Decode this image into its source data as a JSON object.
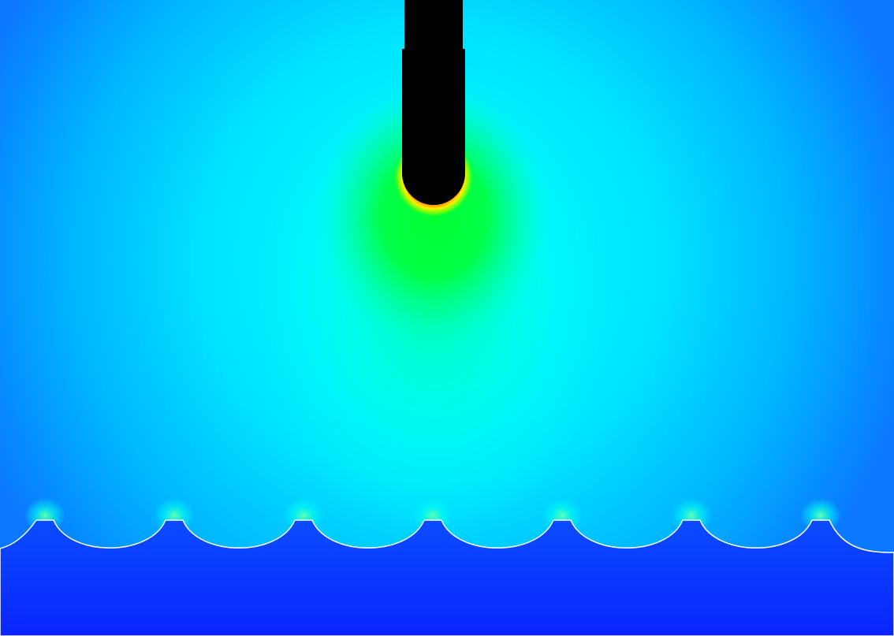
{
  "scene": {
    "colors": {
      "field_low": "#0a2dff",
      "field_mid": "#00ffff",
      "field_high": "#00ff3a",
      "field_peak": "#ff3300",
      "probe": "#000000",
      "interface_line": "#ffffff"
    },
    "features": {
      "probe": "conducting-probe",
      "substrate": "scalloped-dielectric-surface",
      "scallop_count": 7
    }
  }
}
